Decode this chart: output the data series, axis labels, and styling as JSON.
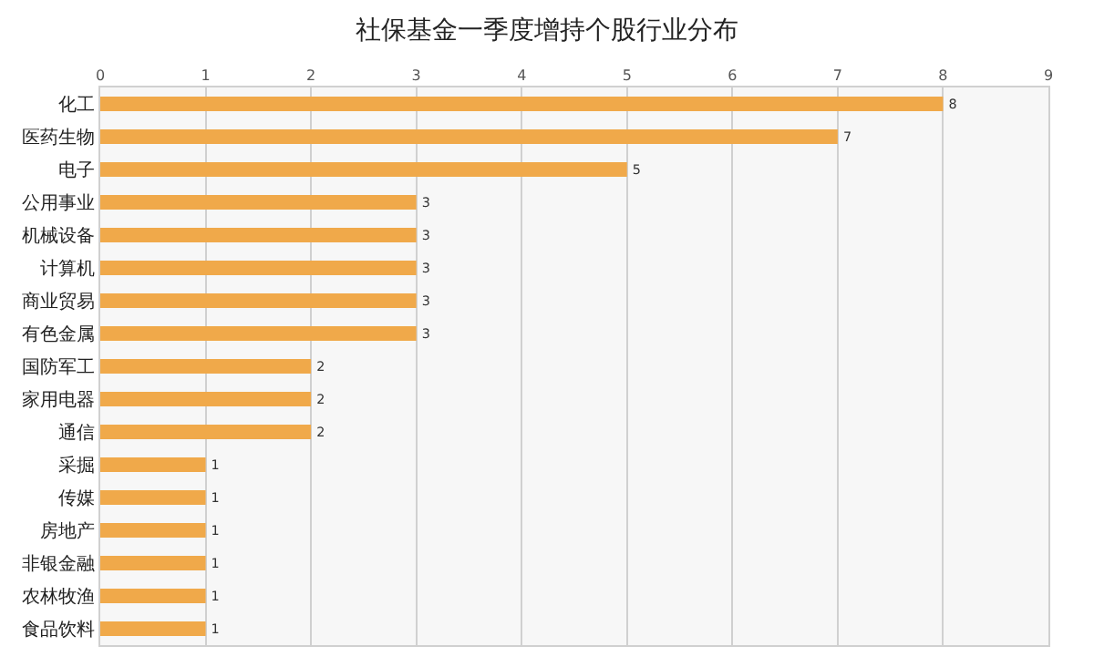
{
  "chart_data": {
    "type": "bar",
    "title": "社保基金一季度增持个股行业分布",
    "orientation": "horizontal",
    "categories": [
      "化工",
      "医药生物",
      "电子",
      "公用事业",
      "机械设备",
      "计算机",
      "商业贸易",
      "有色金属",
      "国防军工",
      "家用电器",
      "通信",
      "采掘",
      "传媒",
      "房地产",
      "非银金融",
      "农林牧渔",
      "食品饮料"
    ],
    "values": [
      8,
      7,
      5,
      3,
      3,
      3,
      3,
      3,
      2,
      2,
      2,
      1,
      1,
      1,
      1,
      1,
      1
    ],
    "color": "#f0a94a",
    "xlim": [
      0,
      9
    ],
    "xticks": [
      0,
      1,
      2,
      3,
      4,
      5,
      6,
      7,
      8,
      9
    ],
    "grid": "x",
    "data_labels": true,
    "legend": false
  }
}
